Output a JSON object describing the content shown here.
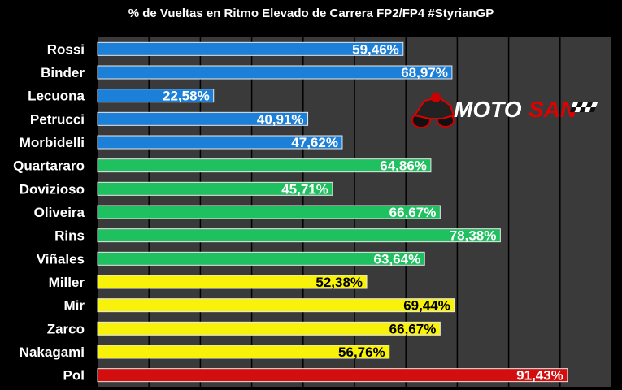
{
  "chart_data": {
    "type": "bar",
    "orientation": "horizontal",
    "title": "% de Vueltas en Ritmo Elevado de Carrera FP2/FP4 #StyrianGP",
    "xlabel": "",
    "ylabel": "",
    "xlim": [
      0,
      100
    ],
    "grid": true,
    "legend": "none",
    "categories": [
      "Rossi",
      "Binder",
      "Lecuona",
      "Petrucci",
      "Morbidelli",
      "Quartararo",
      "Dovizioso",
      "Oliveira",
      "Rins",
      "Viñales",
      "Miller",
      "Mir",
      "Zarco",
      "Nakagami",
      "Pol"
    ],
    "values": [
      59.46,
      68.97,
      22.58,
      40.91,
      47.62,
      64.86,
      45.71,
      66.67,
      78.38,
      63.64,
      52.38,
      69.44,
      66.67,
      56.76,
      91.43
    ],
    "value_labels": [
      "59,46%",
      "68,97%",
      "22,58%",
      "40,91%",
      "47,62%",
      "64,86%",
      "45,71%",
      "66,67%",
      "78,38%",
      "63,64%",
      "52,38%",
      "69,44%",
      "66,67%",
      "56,76%",
      "91,43%"
    ],
    "groups": [
      "blue",
      "blue",
      "blue",
      "blue",
      "blue",
      "green",
      "green",
      "green",
      "green",
      "green",
      "yellow",
      "yellow",
      "yellow",
      "yellow",
      "red"
    ],
    "colors": {
      "blue": "#1c7fd8",
      "green": "#1fc05f",
      "yellow": "#f8f20a",
      "red": "#d20e0e",
      "plot_bg": "#3a3a3a",
      "grid": "#000000"
    },
    "label_colors": {
      "blue": "#ffffff",
      "green": "#ffffff",
      "yellow": "#000000",
      "red": "#ffffff"
    }
  },
  "logo": {
    "text_a": "MOTO",
    "text_b": "SAN",
    "color_a": "#ffffff",
    "color_b": "#e00000"
  }
}
